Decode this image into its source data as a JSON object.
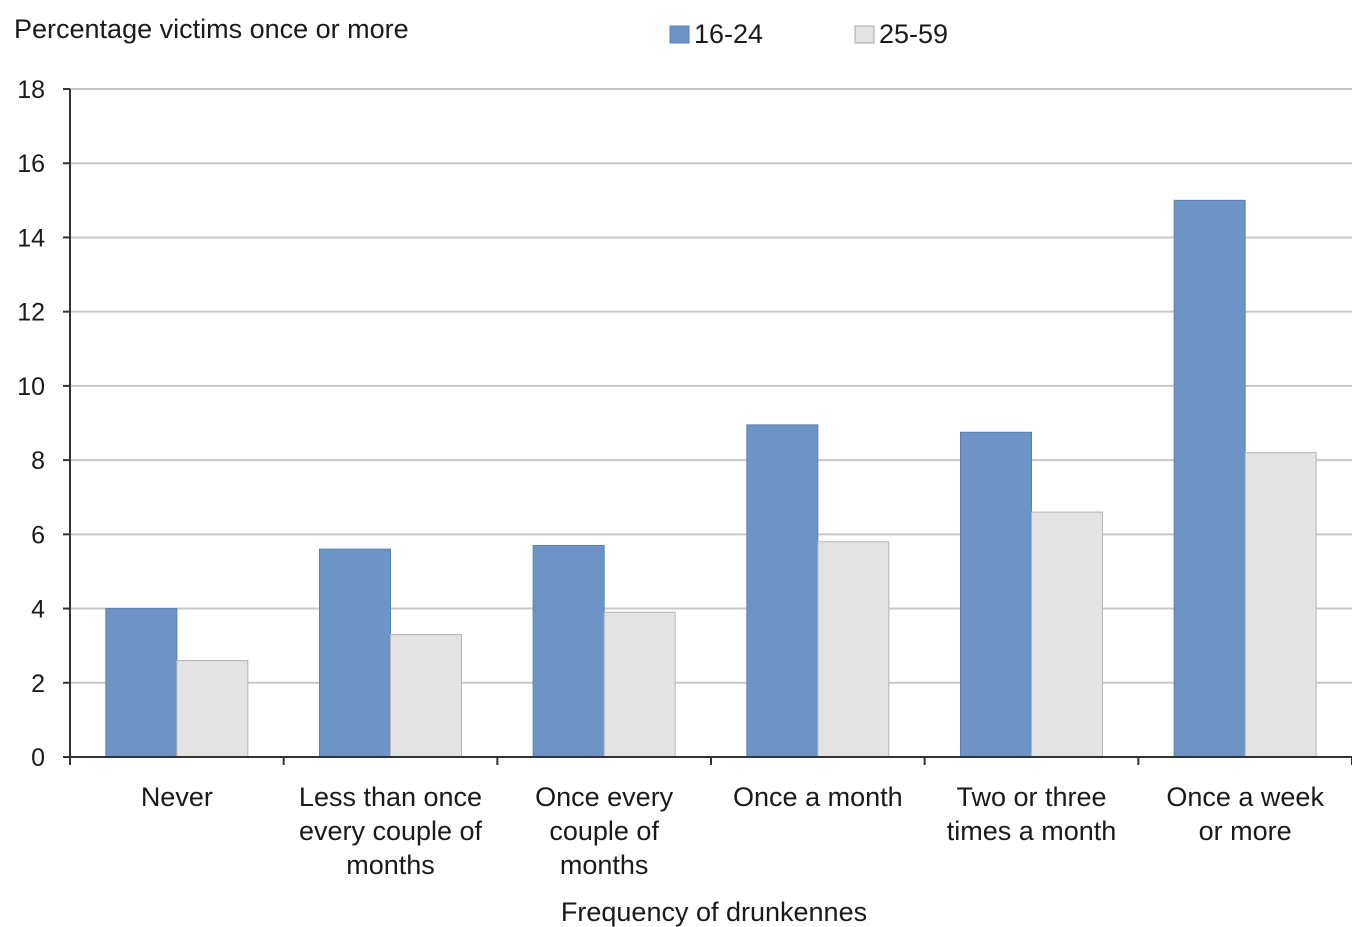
{
  "chart_data": {
    "type": "bar",
    "title": "",
    "ylabel": "Percentage victims once or more",
    "xlabel": "Frequency of drunkennes",
    "ylim": [
      0,
      18
    ],
    "yticks": [
      0,
      2,
      4,
      6,
      8,
      10,
      12,
      14,
      16,
      18
    ],
    "grid": true,
    "legend_position": "top",
    "categories": [
      [
        "Never"
      ],
      [
        "Less than  once",
        "every couple of",
        "months"
      ],
      [
        "Once every",
        "couple of",
        "months"
      ],
      [
        "Once a month"
      ],
      [
        "Two or three",
        "times a month"
      ],
      [
        "Once a week",
        "or more"
      ]
    ],
    "series": [
      {
        "name": "16-24",
        "color": "#6e93c6",
        "values": [
          4.0,
          5.6,
          5.7,
          8.95,
          8.75,
          15.0
        ]
      },
      {
        "name": "25-59",
        "color": "#e3e3e3",
        "values": [
          2.6,
          3.3,
          3.9,
          5.8,
          6.6,
          8.2
        ]
      }
    ]
  }
}
